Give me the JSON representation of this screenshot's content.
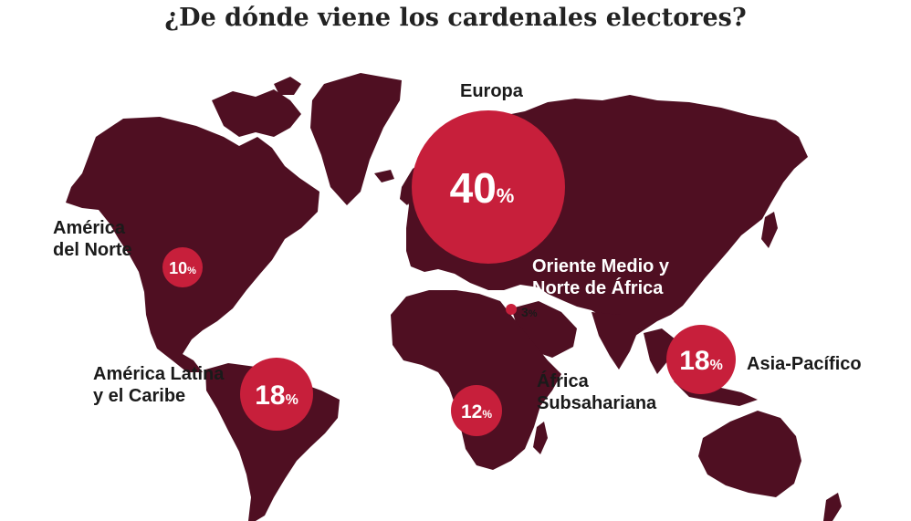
{
  "title": "¿De dónde viene los cardenales electores?",
  "colors": {
    "land": "#4f0f22",
    "bubble": "#c71f3b",
    "text": "#1a1a1a"
  },
  "regions": [
    {
      "key": "europa",
      "name_lines": [
        "Europa"
      ],
      "value": "40",
      "unit": "%"
    },
    {
      "key": "america_norte",
      "name_lines": [
        "América",
        "del Norte"
      ],
      "value": "10",
      "unit": "%"
    },
    {
      "key": "america_latina",
      "name_lines": [
        "América Latina",
        "y el Caribe"
      ],
      "value": "18",
      "unit": "%"
    },
    {
      "key": "oriente_medio",
      "name_lines": [
        "Oriente Medio y",
        "Norte de África"
      ],
      "value": "3",
      "unit": "%"
    },
    {
      "key": "africa_sub",
      "name_lines": [
        "África",
        "Subsahariana"
      ],
      "value": "12",
      "unit": "%"
    },
    {
      "key": "asia_pacifico",
      "name_lines": [
        "Asia-Pacífico"
      ],
      "value": "18",
      "unit": "%"
    }
  ]
}
